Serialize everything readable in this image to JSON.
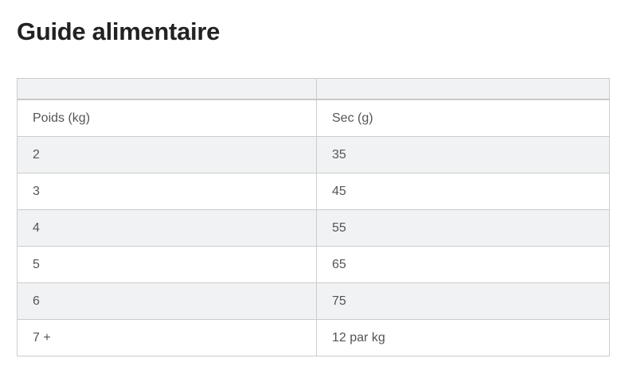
{
  "title": "Guide alimentaire",
  "table": {
    "header": [
      "",
      ""
    ],
    "rows": [
      [
        "Poids (kg)",
        "Sec (g)"
      ],
      [
        "2",
        "35"
      ],
      [
        "3",
        "45"
      ],
      [
        "4",
        "55"
      ],
      [
        "5",
        "65"
      ],
      [
        "6",
        "75"
      ],
      [
        "7 +",
        "12 par kg"
      ]
    ]
  }
}
